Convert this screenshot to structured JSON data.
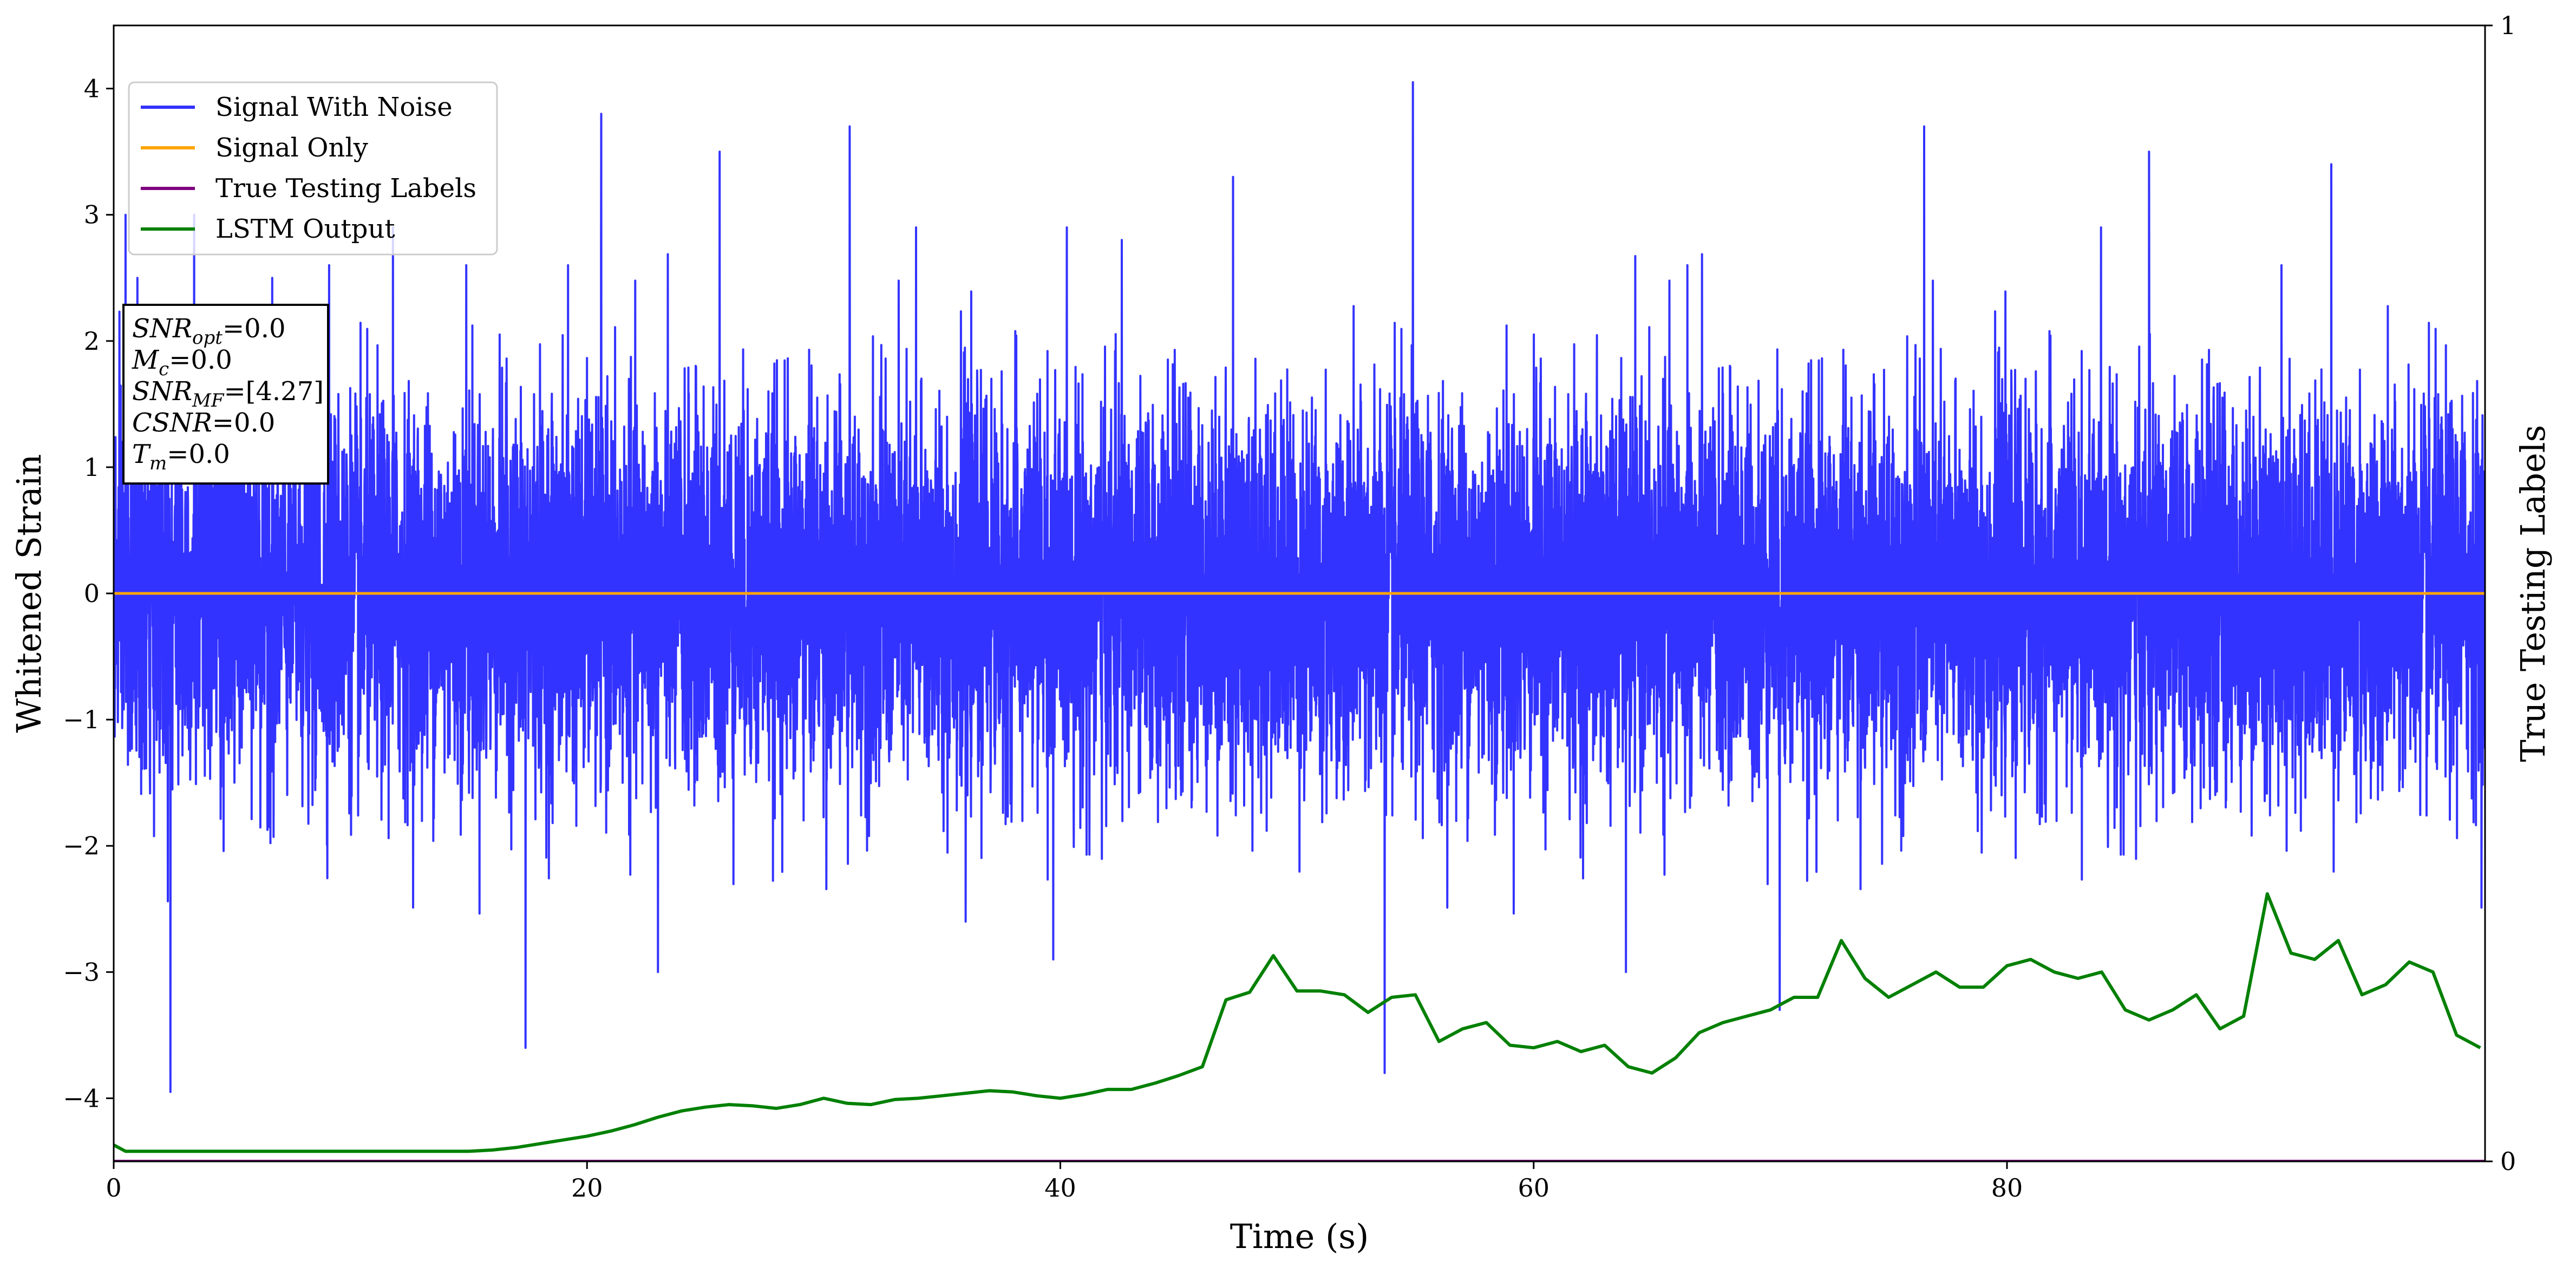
{
  "chart_data": {
    "type": "line",
    "xlabel": "Time (s)",
    "ylabel": "Whitened Strain",
    "y2label": "True Testing Labels",
    "xlim": [
      0,
      100.2
    ],
    "ylim": [
      -4.5,
      4.5
    ],
    "y2lim": [
      0,
      1
    ],
    "xticks": [
      0,
      20,
      40,
      60,
      80
    ],
    "yticks": [
      -4,
      -3,
      -2,
      -1,
      0,
      1,
      2,
      3,
      4
    ],
    "y2ticks": [
      0,
      1
    ],
    "grid": false,
    "legend_position": "upper-left",
    "series": [
      {
        "name": "Signal With Noise",
        "color": "#3333ff",
        "description_points": {
          "x": [
            0.5,
            1.0,
            2.4,
            3.4,
            6.7,
            9.1,
            11.8,
            14.9,
            17.4,
            19.2,
            20.6,
            23.0,
            25.6,
            31.1,
            33.9,
            36.0,
            39.7,
            42.6,
            47.3,
            53.7,
            54.9,
            63.9,
            66.5,
            70.4,
            76.5,
            86.0,
            91.6,
            93.7
          ],
          "y": [
            3.0,
            2.5,
            -3.95,
            3.0,
            2.5,
            2.6,
            2.9,
            2.6,
            -3.6,
            2.6,
            3.8,
            -3.0,
            3.5,
            3.7,
            2.9,
            -2.6,
            -2.9,
            2.8,
            3.3,
            -3.8,
            4.05,
            -3.0,
            2.6,
            -3.3,
            3.7,
            3.5,
            2.6,
            3.4
          ]
        },
        "noise_model": {
          "std": 0.75,
          "samples": 12000
        }
      },
      {
        "name": "Signal Only",
        "color": "#ffa500",
        "x": [
          0,
          100.2
        ],
        "y": [
          0,
          0
        ]
      },
      {
        "name": "True Testing Labels",
        "color": "#800080",
        "axis": "right",
        "x": [
          0,
          100.2
        ],
        "y": [
          0,
          0
        ]
      },
      {
        "name": "LSTM Output",
        "color": "#008000",
        "axis": "left",
        "x": [
          0,
          0.5,
          5,
          10,
          15,
          16,
          17,
          18,
          19,
          20,
          21,
          22,
          23,
          24,
          25,
          26,
          27,
          28,
          29,
          30,
          31,
          32,
          33,
          34,
          35,
          36,
          37,
          38,
          39,
          40,
          41,
          42,
          43,
          44,
          45,
          46,
          47,
          48,
          49,
          50,
          51,
          52,
          53,
          54,
          55,
          56,
          57,
          58,
          59,
          60,
          61,
          62,
          63,
          64,
          65,
          66,
          67,
          68,
          69,
          70,
          71,
          72,
          73,
          74,
          75,
          76,
          77,
          78,
          79,
          80,
          81,
          82,
          83,
          84,
          85,
          86,
          87,
          88,
          89,
          90,
          91,
          92,
          93,
          94,
          95,
          96,
          97,
          98,
          99,
          100
        ],
        "y": [
          -4.37,
          -4.42,
          -4.42,
          -4.42,
          -4.42,
          -4.41,
          -4.39,
          -4.36,
          -4.33,
          -4.3,
          -4.26,
          -4.21,
          -4.15,
          -4.1,
          -4.07,
          -4.05,
          -4.06,
          -4.08,
          -4.05,
          -4.0,
          -4.04,
          -4.05,
          -4.01,
          -4.0,
          -3.98,
          -3.96,
          -3.94,
          -3.95,
          -3.98,
          -4.0,
          -3.97,
          -3.93,
          -3.93,
          -3.88,
          -3.82,
          -3.75,
          -3.22,
          -3.16,
          -2.87,
          -3.15,
          -3.15,
          -3.18,
          -3.32,
          -3.2,
          -3.18,
          -3.55,
          -3.45,
          -3.4,
          -3.58,
          -3.6,
          -3.55,
          -3.63,
          -3.58,
          -3.75,
          -3.8,
          -3.68,
          -3.48,
          -3.4,
          -3.35,
          -3.3,
          -3.2,
          -3.2,
          -2.75,
          -3.05,
          -3.2,
          -3.1,
          -3.0,
          -3.12,
          -3.12,
          -2.95,
          -2.9,
          -3.0,
          -3.05,
          -3.0,
          -3.3,
          -3.38,
          -3.3,
          -3.18,
          -3.45,
          -3.35,
          -2.38,
          -2.85,
          -2.9,
          -2.75,
          -3.18,
          -3.1,
          -2.92,
          -3.0,
          -3.5,
          -3.6
        ]
      }
    ]
  },
  "annotation": {
    "lines": [
      {
        "var": "SNR",
        "sub": "opt",
        "value": "=0.0"
      },
      {
        "var": "M",
        "sub": "c",
        "value": "=0.0"
      },
      {
        "var": "SNR",
        "sub": "MF",
        "value": "=[4.27]"
      },
      {
        "var": "CSNR",
        "sub": "",
        "value": "=0.0"
      },
      {
        "var": "T",
        "sub": "m",
        "value": "=0.0"
      }
    ]
  }
}
